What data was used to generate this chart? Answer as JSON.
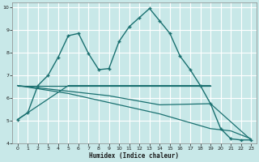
{
  "xlabel": "Humidex (Indice chaleur)",
  "bg_color": "#c8e8e8",
  "line_color": "#1a7070",
  "grid_color": "#ffffff",
  "xlim": [
    -0.5,
    23.5
  ],
  "ylim": [
    4,
    10.2
  ],
  "line1_x": [
    0,
    1,
    2,
    3,
    4,
    5,
    6,
    7,
    8,
    9,
    10,
    11,
    12,
    13,
    14,
    15,
    16,
    17,
    18,
    19,
    20,
    21,
    22,
    23
  ],
  "line1_y": [
    5.05,
    5.35,
    6.55,
    7.0,
    7.8,
    8.75,
    8.85,
    7.95,
    7.25,
    7.3,
    8.5,
    9.15,
    9.55,
    9.95,
    9.4,
    8.85,
    7.85,
    7.25,
    6.55,
    5.75,
    4.65,
    4.2,
    4.15,
    4.15
  ],
  "line2_x": [
    0,
    19
  ],
  "line2_y": [
    6.55,
    6.55
  ],
  "line3_x": [
    0,
    5,
    19
  ],
  "line3_y": [
    5.05,
    6.55,
    6.55
  ],
  "line4_x": [
    0,
    5,
    9,
    14,
    19,
    23
  ],
  "line4_y": [
    6.55,
    6.3,
    6.1,
    5.7,
    5.75,
    4.15
  ],
  "line5_x": [
    0,
    5,
    9,
    14,
    19,
    21,
    23
  ],
  "line5_y": [
    6.55,
    6.2,
    5.8,
    5.3,
    4.65,
    4.55,
    4.2
  ],
  "yticks": [
    4,
    5,
    6,
    7,
    8,
    9,
    10
  ],
  "xticks": [
    0,
    1,
    2,
    3,
    4,
    5,
    6,
    7,
    8,
    9,
    10,
    11,
    12,
    13,
    14,
    15,
    16,
    17,
    18,
    19,
    20,
    21,
    22,
    23
  ]
}
